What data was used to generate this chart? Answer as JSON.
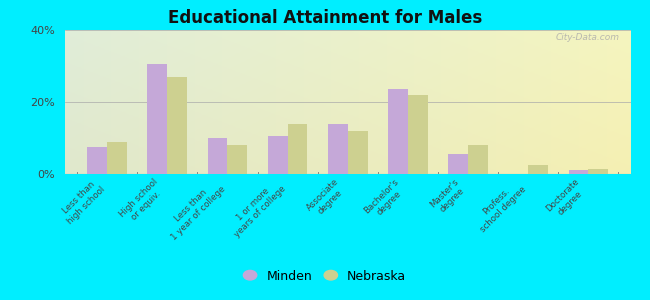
{
  "title": "Educational Attainment for Males",
  "categories": [
    "Less than\nhigh school",
    "High school\nor equiv.",
    "Less than\n1 year of college",
    "1 or more\nyears of college",
    "Associate\ndegree",
    "Bachelor's\ndegree",
    "Master's\ndegree",
    "Profess.\nschool degree",
    "Doctorate\ndegree"
  ],
  "minden_values": [
    7.5,
    30.5,
    10.0,
    10.5,
    14.0,
    23.5,
    5.5,
    0.0,
    1.0
  ],
  "nebraska_values": [
    9.0,
    27.0,
    8.0,
    14.0,
    12.0,
    22.0,
    8.0,
    2.5,
    1.5
  ],
  "minden_color": "#c5a8d8",
  "nebraska_color": "#cdd090",
  "outer_bg": "#00eeff",
  "ylim": [
    0,
    40
  ],
  "yticks": [
    0,
    20,
    40
  ],
  "ytick_labels": [
    "0%",
    "20%",
    "40%"
  ],
  "legend_minden": "Minden",
  "legend_nebraska": "Nebraska",
  "watermark": "City-Data.com"
}
